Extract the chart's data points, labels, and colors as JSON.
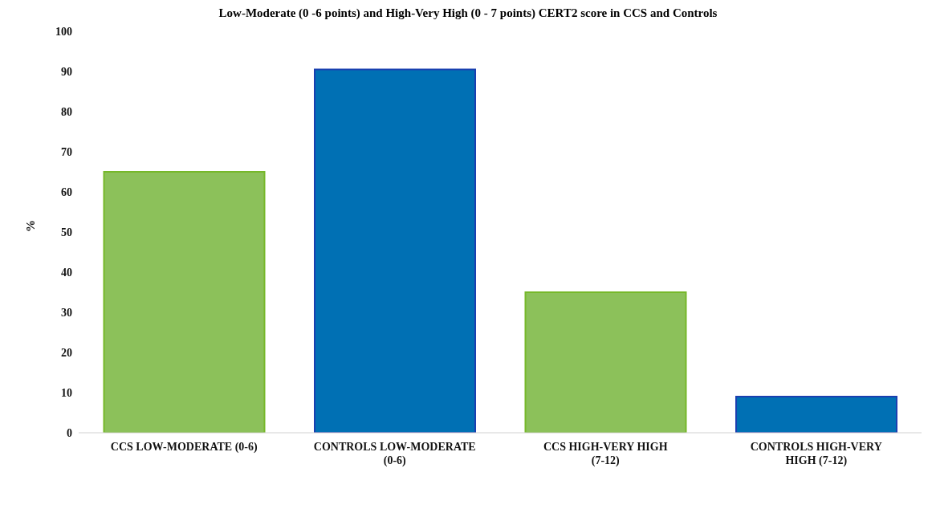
{
  "chart_data": {
    "type": "bar",
    "title": "Low-Moderate (0 -6 points) and High-Very High (0 - 7 points) CERT2 score in CCS and Controls",
    "ylabel": "%",
    "categories": [
      "CCS LOW-MODERATE (0-6)",
      "CONTROLS LOW-MODERATE (0-6)",
      "CCS HIGH-VERY HIGH (7-12)",
      "CONTROLS HIGH-VERY HIGH (7-12)"
    ],
    "values": [
      65,
      90.5,
      35,
      9
    ],
    "colors": [
      "#8cc15a",
      "#0070b4",
      "#8cc15a",
      "#0070b4"
    ],
    "ylim": [
      0,
      100
    ],
    "yticks": [
      0,
      10,
      20,
      30,
      40,
      50,
      60,
      70,
      80,
      90,
      100
    ],
    "grid": false,
    "legend": false
  }
}
